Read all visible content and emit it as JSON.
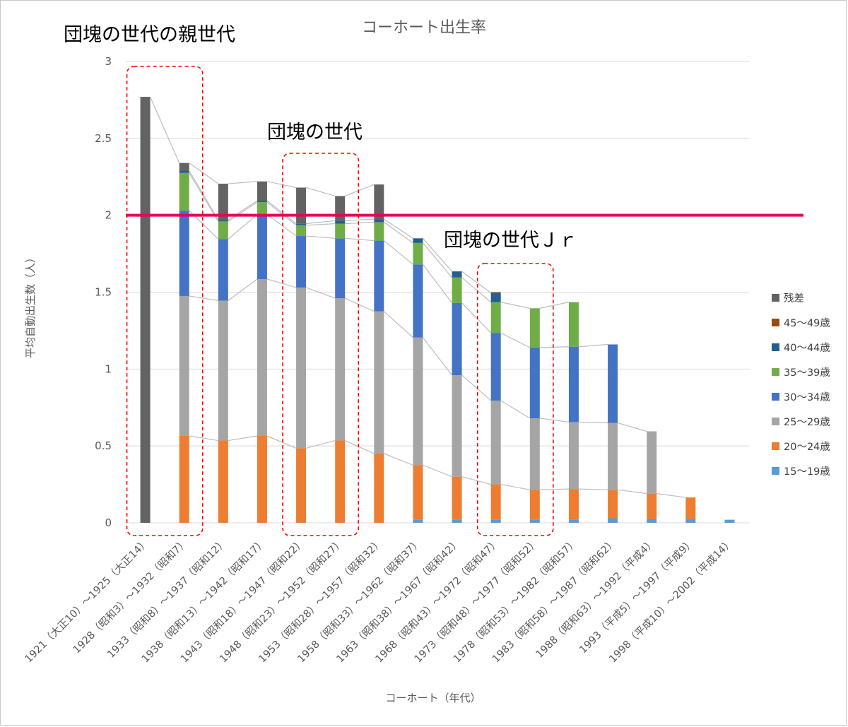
{
  "chart_data": {
    "type": "bar",
    "stacked": true,
    "title": "コーホート出生率",
    "xlabel": "コーホート（年代）",
    "ylabel": "平均自動出生数（人）",
    "ylim": [
      0,
      3
    ],
    "yticks": [
      "0",
      "0.5",
      "1",
      "1.5",
      "2",
      "2.5",
      "3"
    ],
    "grid": true,
    "legend_position": "right",
    "categories": [
      "1921（大正10）～1925（大正14）",
      "1928（昭和3）～1932（昭和7）",
      "1933（昭和8）～1937（昭和12）",
      "1938（昭和13）～1942（昭和17）",
      "1943（昭和18）～1947（昭和22）",
      "1948（昭和23）～1952（昭和27）",
      "1953（昭和28）～1957（昭和32）",
      "1958（昭和33）～1962（昭和37）",
      "1963（昭和38）～1967（昭和42）",
      "1968（昭和43）～1972（昭和47）",
      "1973（昭和48）～1977（昭和52）",
      "1978（昭和53）～1982（昭和57）",
      "1983（昭和58）～1987（昭和62）",
      "1988（昭和63）～1992（平成4）",
      "1993（平成5）～1997（平成9）",
      "1998（平成10）～2002（平成14）"
    ],
    "series": [
      {
        "name": "15～19歳",
        "color": "#5B9BD5",
        "values": [
          0,
          0,
          0,
          0,
          0,
          0,
          0,
          0.02,
          0.02,
          0.02,
          0.02,
          0.02,
          0.03,
          0.025,
          0.025,
          0.02
        ]
      },
      {
        "name": "20～24歳",
        "color": "#ED7D31",
        "values": [
          0,
          0.565,
          0.535,
          0.565,
          0.485,
          0.535,
          0.45,
          0.355,
          0.28,
          0.23,
          0.195,
          0.2,
          0.185,
          0.165,
          0.14,
          0
        ]
      },
      {
        "name": "25～29歳",
        "color": "#A5A5A5",
        "values": [
          0,
          0.91,
          0.91,
          1.02,
          1.045,
          0.925,
          0.925,
          0.83,
          0.66,
          0.545,
          0.465,
          0.435,
          0.435,
          0.405,
          0,
          0
        ]
      },
      {
        "name": "30～34歳",
        "color": "#4472C4",
        "values": [
          0,
          0.555,
          0.4,
          0.42,
          0.335,
          0.39,
          0.46,
          0.475,
          0.47,
          0.44,
          0.46,
          0.49,
          0.51,
          0,
          0,
          0
        ]
      },
      {
        "name": "35～39歳",
        "color": "#70AD47",
        "values": [
          0,
          0.245,
          0.115,
          0.08,
          0.07,
          0.095,
          0.12,
          0.14,
          0.165,
          0.2,
          0.255,
          0.29,
          0,
          0,
          0,
          0
        ]
      },
      {
        "name": "40～44歳",
        "color": "#255E91",
        "values": [
          0,
          0.015,
          0.01,
          0.01,
          0.01,
          0.02,
          0.02,
          0.03,
          0.04,
          0.06,
          0,
          0,
          0,
          0,
          0,
          0
        ]
      },
      {
        "name": "45～49歳",
        "color": "#9E480E",
        "values": [
          0,
          0,
          0,
          0,
          0,
          0,
          0,
          0,
          0,
          0.005,
          0,
          0,
          0,
          0,
          0,
          0
        ]
      },
      {
        "name": "残差",
        "color": "#636363",
        "values": [
          2.77,
          0.05,
          0.235,
          0.125,
          0.235,
          0.16,
          0.225,
          0,
          0,
          0,
          0,
          0,
          0,
          0,
          0,
          0
        ]
      }
    ],
    "reference_line": {
      "value": 2,
      "color": "#E8005A"
    },
    "highlight_groups": [
      {
        "label": "団塊の世代の親世代",
        "categories": [
          0,
          1
        ]
      },
      {
        "label": "団塊の世代",
        "categories": [
          4,
          5
        ]
      },
      {
        "label": "団塊の世代Ｊｒ",
        "categories": [
          9,
          10
        ]
      }
    ]
  }
}
